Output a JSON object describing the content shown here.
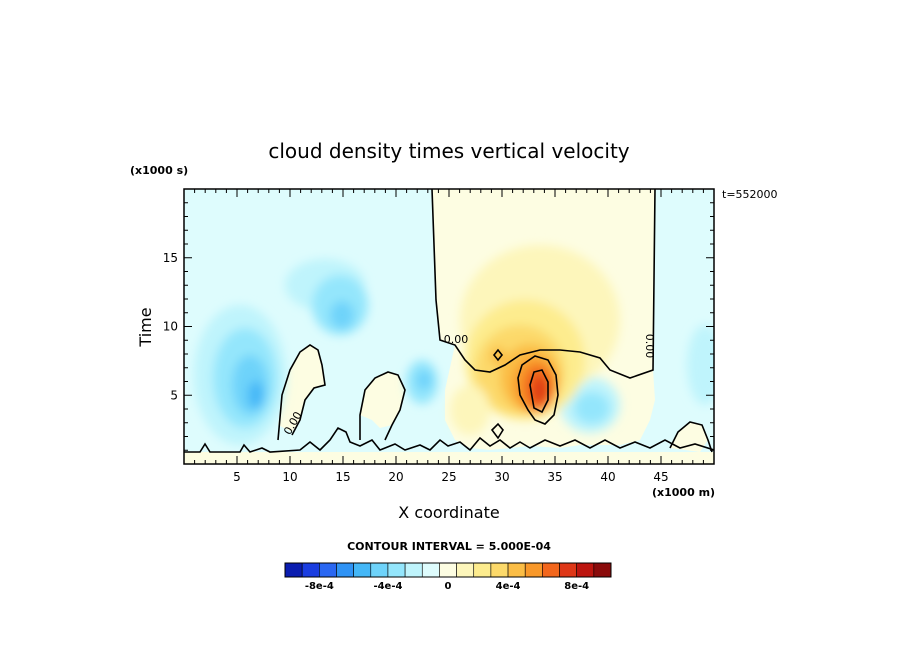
{
  "chart_data": {
    "type": "heatmap",
    "title": "cloud density times vertical velocity",
    "xlabel": "X coordinate",
    "ylabel": "Time",
    "x_unit": "(x1000 m)",
    "y_unit": "(x1000 s)",
    "time_label": "t=552000",
    "x_ticks": [
      5,
      10,
      15,
      20,
      25,
      30,
      35,
      40,
      45
    ],
    "y_ticks": [
      5,
      10,
      15
    ],
    "xlim": [
      0,
      50
    ],
    "ylim": [
      0,
      20
    ],
    "contour_interval_text": "CONTOUR INTERVAL = 5.000E-04",
    "contour_labels": [
      "0.00",
      "0.00",
      "0.00"
    ],
    "colorbar": {
      "labels": [
        "-8e-4",
        "-4e-4",
        "0",
        "4e-4",
        "8e-4"
      ],
      "colors": [
        "#0b1db0",
        "#1a3de0",
        "#2a67f2",
        "#2f93f5",
        "#44b7f7",
        "#6ed3fa",
        "#94e6fc",
        "#bff4fc",
        "#defcfd",
        "#fdfde2",
        "#fdf6bb",
        "#fdec8e",
        "#fcd96a",
        "#fbbd45",
        "#f8982a",
        "#f2661c",
        "#de3717",
        "#bc150f",
        "#8a0b0b"
      ]
    },
    "features": [
      {
        "type": "negative",
        "x": 4.5,
        "t": 5.5,
        "level": -0.0004
      },
      {
        "type": "negative",
        "x": 14.5,
        "t": 11,
        "level": -0.0002
      },
      {
        "type": "negative",
        "x": 22.5,
        "t": 5,
        "level": -0.00015
      },
      {
        "type": "negative",
        "x": 39.5,
        "t": 4.5,
        "level": -0.00025
      },
      {
        "type": "positive",
        "x": 33.5,
        "t": 5.5,
        "level": 0.0009
      },
      {
        "type": "positive",
        "x": 29.5,
        "t": 8,
        "level": 0.0004
      }
    ]
  }
}
